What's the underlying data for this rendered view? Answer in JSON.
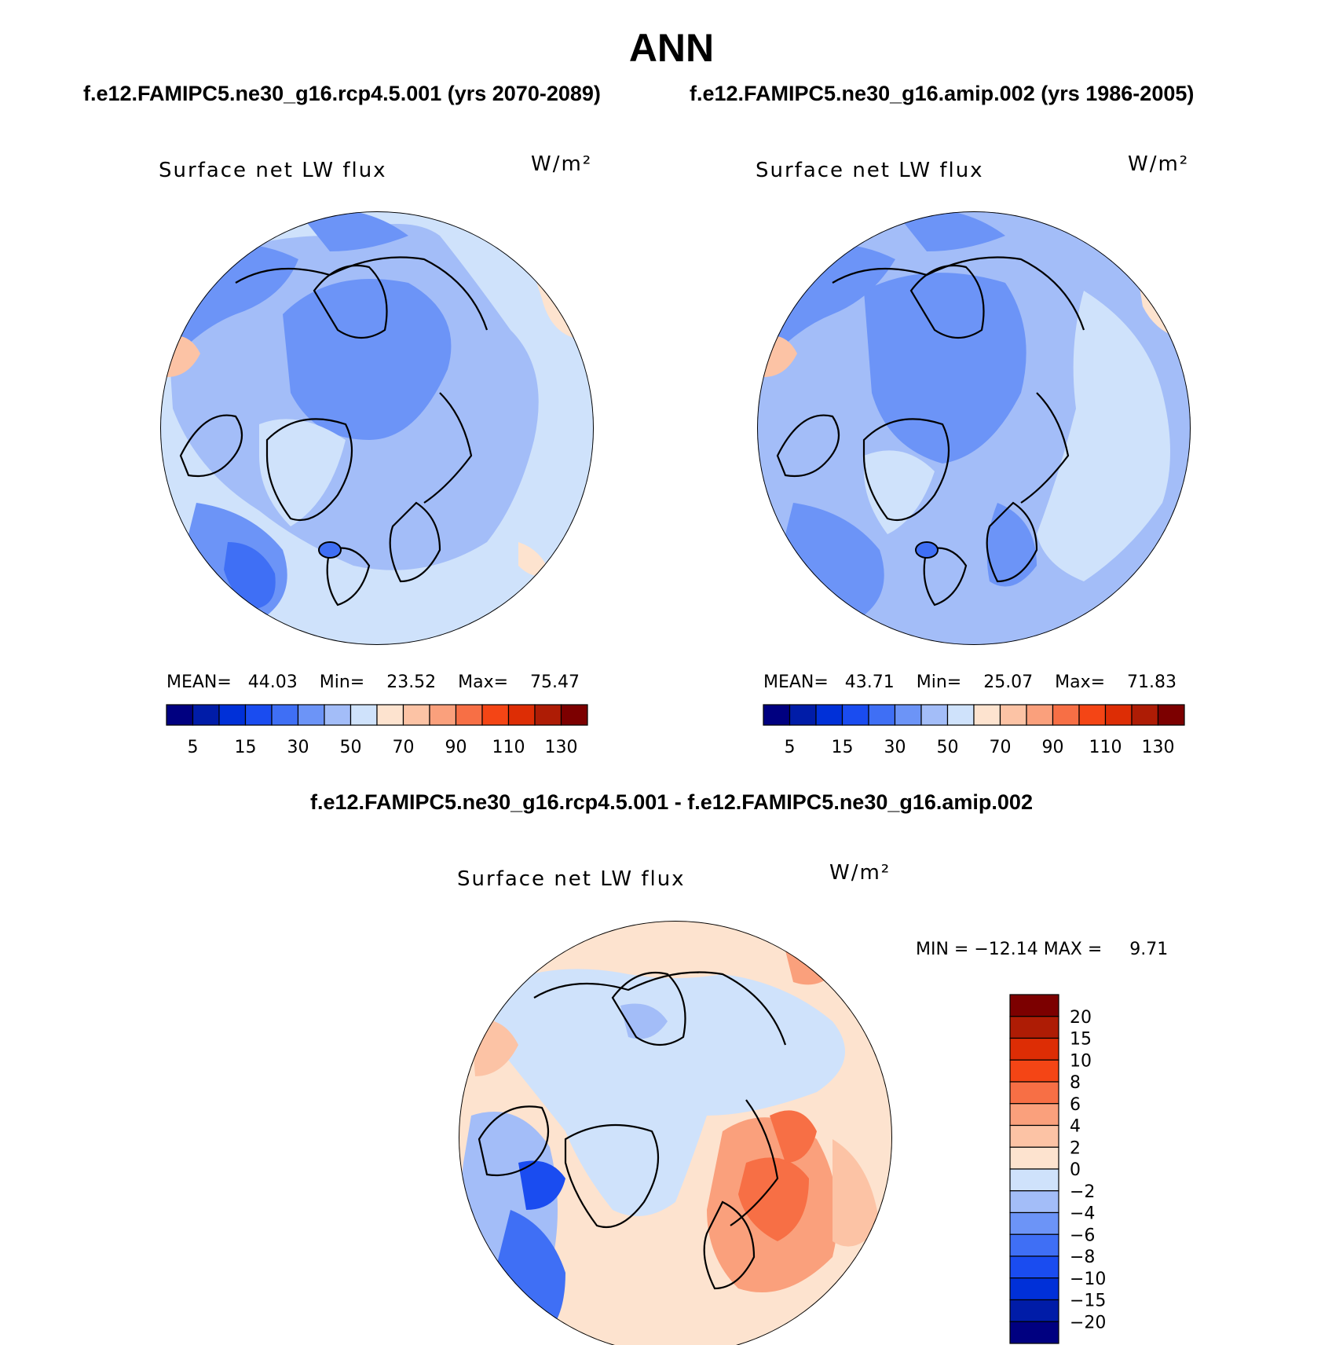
{
  "page": {
    "title": "ANN",
    "case_left": "f.e12.FAMIPC5.ne30_g16.rcp4.5.001 (yrs 2070-2089)",
    "case_right": "f.e12.FAMIPC5.ne30_g16.amip.002 (yrs 1986-2005)",
    "diff_title": "f.e12.FAMIPC5.ne30_g16.rcp4.5.001 - f.e12.FAMIPC5.ne30_g16.amip.002"
  },
  "colors": {
    "sequential_scale": [
      "#000080",
      "#001ca8",
      "#0030d8",
      "#1a4cf0",
      "#3f6ff5",
      "#6c94f7",
      "#a3bdf8",
      "#cfe2fb",
      "#fde3cf",
      "#fcc3a5",
      "#faa07c",
      "#f76f45",
      "#f44515",
      "#dd2d05",
      "#ae1c05",
      "#7c0000"
    ],
    "diff_scale": [
      "#000080",
      "#001ca8",
      "#0030d8",
      "#1a4cf0",
      "#3f6ff5",
      "#6c94f7",
      "#a3bdf8",
      "#cfe2fb",
      "#fde3cf",
      "#fcc3a5",
      "#faa07c",
      "#f76f45",
      "#f44515",
      "#dd2d05",
      "#ae1c05",
      "#7c0000"
    ]
  },
  "chart_data": [
    {
      "type": "heatmap",
      "projection": "north-polar-stereographic",
      "title": "Surface net LW flux",
      "units": "W/m²",
      "stats": {
        "mean": "44.03",
        "min": "23.52",
        "max": "75.47"
      },
      "stats_text": "MEAN=   44.03    Min=    23.52    Max=    75.47",
      "colorbar": {
        "orientation": "horizontal",
        "levels": [
          5,
          10,
          15,
          20,
          30,
          40,
          50,
          60,
          70,
          80,
          90,
          100,
          110,
          120,
          130
        ],
        "tick_labels": [
          "5",
          "15",
          "30",
          "50",
          "70",
          "90",
          "110",
          "130"
        ]
      }
    },
    {
      "type": "heatmap",
      "projection": "north-polar-stereographic",
      "title": "Surface net LW flux",
      "units": "W/m²",
      "stats": {
        "mean": "43.71",
        "min": "25.07",
        "max": "71.83"
      },
      "stats_text": "MEAN=   43.71    Min=    25.07    Max=    71.83",
      "colorbar": {
        "orientation": "horizontal",
        "levels": [
          5,
          10,
          15,
          20,
          30,
          40,
          50,
          60,
          70,
          80,
          90,
          100,
          110,
          120,
          130
        ],
        "tick_labels": [
          "5",
          "15",
          "30",
          "50",
          "70",
          "90",
          "110",
          "130"
        ]
      }
    },
    {
      "type": "heatmap",
      "projection": "north-polar-stereographic",
      "title": "Surface net LW flux",
      "units": "W/m²",
      "stats": {
        "min": "−12.14",
        "max": "9.71"
      },
      "stats_text": "MIN = −12.14 MAX =     9.71",
      "colorbar": {
        "orientation": "vertical",
        "levels": [
          -20,
          -15,
          -10,
          -8,
          -6,
          -4,
          -2,
          0,
          2,
          4,
          6,
          8,
          10,
          15,
          20
        ],
        "tick_labels": [
          "20",
          "15",
          "10",
          "8",
          "6",
          "4",
          "2",
          "0",
          "−2",
          "−4",
          "−6",
          "−8",
          "−10",
          "−15",
          "−20"
        ]
      }
    }
  ]
}
